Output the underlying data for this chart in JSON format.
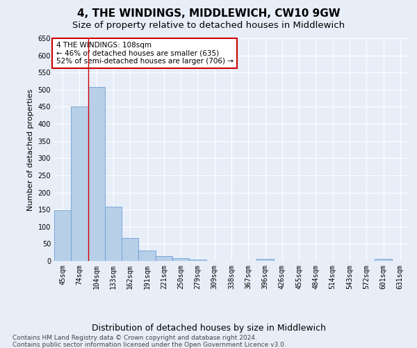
{
  "title": "4, THE WINDINGS, MIDDLEWICH, CW10 9GW",
  "subtitle": "Size of property relative to detached houses in Middlewich",
  "xlabel": "Distribution of detached houses by size in Middlewich",
  "ylabel": "Number of detached properties",
  "categories": [
    "45sqm",
    "74sqm",
    "104sqm",
    "133sqm",
    "162sqm",
    "191sqm",
    "221sqm",
    "250sqm",
    "279sqm",
    "309sqm",
    "338sqm",
    "367sqm",
    "396sqm",
    "426sqm",
    "455sqm",
    "484sqm",
    "514sqm",
    "543sqm",
    "572sqm",
    "601sqm",
    "631sqm"
  ],
  "values": [
    148,
    450,
    507,
    158,
    68,
    30,
    14,
    8,
    4,
    0,
    0,
    0,
    7,
    0,
    0,
    0,
    0,
    0,
    0,
    6,
    0
  ],
  "bar_color": "#b8cfe8",
  "bar_edge_color": "#6a9fd8",
  "vline_x": 1.5,
  "vline_color": "#cc0000",
  "annotation_text": "4 THE WINDINGS: 108sqm\n← 46% of detached houses are smaller (635)\n52% of semi-detached houses are larger (706) →",
  "annotation_box_color": "#ffffff",
  "annotation_box_edge_color": "#cc0000",
  "ylim": [
    0,
    650
  ],
  "yticks": [
    0,
    50,
    100,
    150,
    200,
    250,
    300,
    350,
    400,
    450,
    500,
    550,
    600,
    650
  ],
  "footer_line1": "Contains HM Land Registry data © Crown copyright and database right 2024.",
  "footer_line2": "Contains public sector information licensed under the Open Government Licence v3.0.",
  "background_color": "#e8eef8",
  "plot_background_color": "#e8eef8",
  "grid_color": "#ffffff",
  "title_fontsize": 11,
  "subtitle_fontsize": 9.5,
  "ylabel_fontsize": 8,
  "xlabel_fontsize": 9,
  "tick_fontsize": 7,
  "annotation_fontsize": 7.5,
  "footer_fontsize": 6.5
}
